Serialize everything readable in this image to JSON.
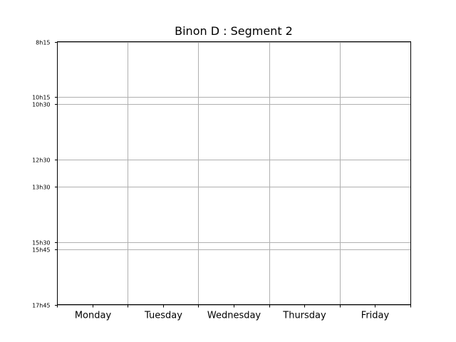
{
  "chart_data": {
    "type": "timetable",
    "title": "Binon D : Segment 2",
    "days": [
      "Monday",
      "Tuesday",
      "Wednesday",
      "Thursday",
      "Friday"
    ],
    "time_ticks": [
      {
        "label": "8h15",
        "minutes": 495
      },
      {
        "label": "10h15",
        "minutes": 615
      },
      {
        "label": "10h30",
        "minutes": 630
      },
      {
        "label": "12h30",
        "minutes": 750
      },
      {
        "label": "13h30",
        "minutes": 810
      },
      {
        "label": "15h30",
        "minutes": 930
      },
      {
        "label": "15h45",
        "minutes": 945
      },
      {
        "label": "17h45",
        "minutes": 1065
      }
    ],
    "ylim_minutes": [
      495,
      1065
    ],
    "y_inverted": true,
    "grid": true,
    "events": [],
    "colors": {
      "grid": "#b0b0b0",
      "frame": "#000000",
      "background": "#ffffff"
    }
  }
}
